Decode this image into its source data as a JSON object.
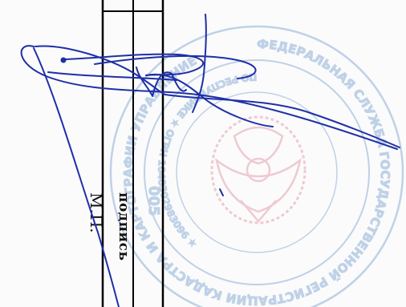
{
  "document": {
    "labels": {
      "mp": "М.П.",
      "signature": "подпись"
    }
  },
  "stamp": {
    "outer_text": "ФЕДЕРАЛЬНАЯ СЛУЖБА ГОСУДАРСТВЕННОЙ РЕГИСТРАЦИИ КАДАСТРА И КАРТОГРАФИИ УПРАВЛЕНИЕ",
    "inner_text": "ПО РЕСПУБЛИКЕ ★ ОГРН 1040302983096 ★",
    "side_number": "005",
    "ink_color": "#8fb0d8",
    "emblem_color": "#e39aa8"
  },
  "signature": {
    "ink_color": "#1e2fa8"
  },
  "colors": {
    "rule_lines": "#000000",
    "text": "#111111"
  }
}
